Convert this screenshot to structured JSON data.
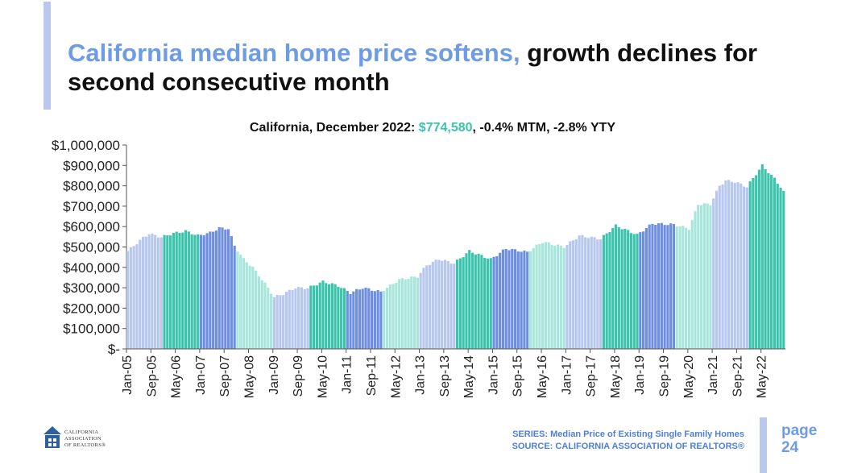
{
  "slide": {
    "title_accent": "California median home price softens,",
    "title_rest": " growth declines for second consecutive month",
    "subtitle_prefix": "California, December 2022: ",
    "subtitle_price": "$774,580",
    "subtitle_suffix": ", -0.4% MTM, -2.8% YTY",
    "series_label": "SERIES: Median Price of Existing Single Family Homes",
    "source_label": "SOURCE: CALIFORNIA ASSOCIATION OF REALTORS®",
    "page_word": "page",
    "page_number": "24",
    "logo_lines": [
      "CALIFORNIA",
      "ASSOCIATION",
      "OF REALTORS®"
    ]
  },
  "colors": {
    "accent_blue": "#6e9be6",
    "price_teal": "#3cc3ac",
    "bar_palette": [
      "#b7c7ee",
      "#3cc3ac",
      "#6e8fe0",
      "#a8e6db"
    ]
  },
  "chart_data": {
    "type": "bar",
    "title": "California, December 2022: $774,580, -0.4% MTM, -2.8% YTY",
    "xlabel": "",
    "ylabel": "",
    "ylim": [
      0,
      1000000
    ],
    "yticks": [
      0,
      100000,
      200000,
      300000,
      400000,
      500000,
      600000,
      700000,
      800000,
      900000,
      1000000
    ],
    "ytick_labels": [
      "$-",
      "$100,000",
      "$200,000",
      "$300,000",
      "$400,000",
      "$500,000",
      "$600,000",
      "$700,000",
      "$800,000",
      "$900,000",
      "$1,000,000"
    ],
    "xtick_labels": [
      "Jan-05",
      "Sep-05",
      "May-06",
      "Jan-07",
      "Sep-07",
      "May-08",
      "Jan-09",
      "Sep-09",
      "May-10",
      "Jan-11",
      "Sep-11",
      "May-12",
      "Jan-13",
      "Sep-13",
      "May-14",
      "Jan-15",
      "Sep-15",
      "May-16",
      "Jan-17",
      "Sep-17",
      "May-18",
      "Jan-19",
      "Sep-19",
      "May-20",
      "Jan-21",
      "Sep-21",
      "May-22"
    ],
    "start": "Jan-2005",
    "end": "Dec-2022",
    "color_by_year": true,
    "anchors": [
      [
        "2005-01",
        480000
      ],
      [
        "2005-06",
        545000
      ],
      [
        "2005-08",
        565000
      ],
      [
        "2005-12",
        548000
      ],
      [
        "2006-04",
        567000
      ],
      [
        "2006-08",
        578000
      ],
      [
        "2006-12",
        556000
      ],
      [
        "2007-04",
        570000
      ],
      [
        "2007-07",
        593000
      ],
      [
        "2007-10",
        590000
      ],
      [
        "2007-12",
        505000
      ],
      [
        "2008-03",
        440000
      ],
      [
        "2008-06",
        400000
      ],
      [
        "2008-10",
        320000
      ],
      [
        "2009-01",
        254000
      ],
      [
        "2009-04",
        270000
      ],
      [
        "2009-08",
        300000
      ],
      [
        "2009-12",
        298000
      ],
      [
        "2010-05",
        330000
      ],
      [
        "2010-10",
        310000
      ],
      [
        "2011-02",
        275000
      ],
      [
        "2011-06",
        300000
      ],
      [
        "2011-12",
        280000
      ],
      [
        "2012-03",
        310000
      ],
      [
        "2012-06",
        340000
      ],
      [
        "2012-12",
        355000
      ],
      [
        "2013-03",
        410000
      ],
      [
        "2013-07",
        440000
      ],
      [
        "2013-12",
        420000
      ],
      [
        "2014-05",
        480000
      ],
      [
        "2014-12",
        440000
      ],
      [
        "2015-05",
        492000
      ],
      [
        "2015-12",
        475000
      ],
      [
        "2016-05",
        525000
      ],
      [
        "2016-12",
        500000
      ],
      [
        "2017-05",
        555000
      ],
      [
        "2017-12",
        540000
      ],
      [
        "2018-05",
        605000
      ],
      [
        "2018-12",
        560000
      ],
      [
        "2019-05",
        615000
      ],
      [
        "2019-12",
        610000
      ],
      [
        "2020-05",
        590000
      ],
      [
        "2020-08",
        710000
      ],
      [
        "2020-12",
        710000
      ],
      [
        "2021-03",
        800000
      ],
      [
        "2021-05",
        825000
      ],
      [
        "2021-08",
        820000
      ],
      [
        "2021-12",
        795000
      ],
      [
        "2022-05",
        900000
      ],
      [
        "2022-09",
        835000
      ],
      [
        "2022-12",
        774580
      ]
    ]
  }
}
